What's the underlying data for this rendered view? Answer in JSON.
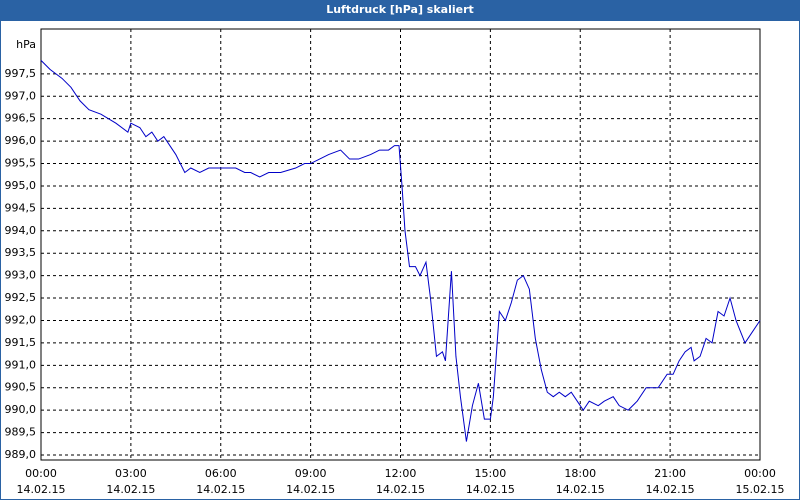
{
  "chart_data": {
    "type": "line",
    "title": "Luftdruck [hPa] skaliert",
    "y_label": "hPa",
    "x": [
      0,
      0.3,
      0.7,
      1.0,
      1.3,
      1.6,
      2.0,
      2.5,
      2.9,
      3.0,
      3.3,
      3.5,
      3.7,
      3.9,
      4.1,
      4.5,
      4.8,
      5.0,
      5.3,
      5.6,
      6.0,
      6.5,
      6.8,
      7.0,
      7.3,
      7.6,
      8.0,
      8.5,
      8.8,
      9.0,
      9.3,
      9.6,
      10.0,
      10.3,
      10.6,
      11.0,
      11.3,
      11.6,
      11.8,
      11.95,
      12.05,
      12.15,
      12.3,
      12.5,
      12.65,
      12.85,
      13.0,
      13.2,
      13.4,
      13.5,
      13.7,
      13.85,
      14.0,
      14.2,
      14.4,
      14.6,
      14.8,
      15.0,
      15.1,
      15.3,
      15.5,
      15.7,
      15.9,
      16.1,
      16.3,
      16.5,
      16.7,
      16.9,
      17.1,
      17.3,
      17.5,
      17.7,
      17.9,
      18.1,
      18.3,
      18.6,
      18.8,
      19.1,
      19.3,
      19.6,
      19.9,
      20.2,
      20.4,
      20.6,
      20.9,
      21.1,
      21.3,
      21.5,
      21.7,
      21.8,
      22.0,
      22.2,
      22.4,
      22.6,
      22.8,
      23.0,
      23.2,
      23.5,
      23.7,
      24.0
    ],
    "series": [
      {
        "name": "Luftdruck",
        "color": "#0000c8",
        "values": [
          997.8,
          997.6,
          997.4,
          997.2,
          996.9,
          996.7,
          996.6,
          996.4,
          996.2,
          996.4,
          996.3,
          996.1,
          996.2,
          996.0,
          996.1,
          995.7,
          995.3,
          995.4,
          995.3,
          995.4,
          995.4,
          995.4,
          995.3,
          995.3,
          995.2,
          995.3,
          995.3,
          995.4,
          995.5,
          995.5,
          995.6,
          995.7,
          995.8,
          995.6,
          995.6,
          995.7,
          995.8,
          995.8,
          995.9,
          995.9,
          995.0,
          994.0,
          993.2,
          993.2,
          993.0,
          993.3,
          992.5,
          991.2,
          991.3,
          991.1,
          993.1,
          991.2,
          990.3,
          989.3,
          990.1,
          990.6,
          989.8,
          989.8,
          990.3,
          992.2,
          992.0,
          992.4,
          992.9,
          993.0,
          992.7,
          991.6,
          990.9,
          990.4,
          990.3,
          990.4,
          990.3,
          990.4,
          990.2,
          990.0,
          990.2,
          990.1,
          990.2,
          990.3,
          990.1,
          990.0,
          990.2,
          990.5,
          990.5,
          990.5,
          990.8,
          990.8,
          991.1,
          991.3,
          991.4,
          991.1,
          991.2,
          991.6,
          991.5,
          992.2,
          992.1,
          992.5,
          992.0,
          991.5,
          991.7,
          992.0
        ]
      }
    ],
    "xlim": [
      0,
      24
    ],
    "xticks": [
      {
        "value": 0,
        "label": "00:00 14.02.15"
      },
      {
        "value": 3,
        "label": "03:00 14.02.15"
      },
      {
        "value": 6,
        "label": "06:00 14.02.15"
      },
      {
        "value": 9,
        "label": "09:00 14.02.15"
      },
      {
        "value": 12,
        "label": "12:00 14.02.15"
      },
      {
        "value": 15,
        "label": "15:00 14.02.15"
      },
      {
        "value": 18,
        "label": "18:00 14.02.15"
      },
      {
        "value": 21,
        "label": "21:00 14.02.15"
      },
      {
        "value": 24,
        "label": "00:00 15.02.15"
      }
    ],
    "ylim": [
      989,
      998.5
    ],
    "yticks": [
      {
        "value": 989.0,
        "label": "989,0"
      },
      {
        "value": 989.5,
        "label": "989,5"
      },
      {
        "value": 990.0,
        "label": "990,0"
      },
      {
        "value": 990.5,
        "label": "990,5"
      },
      {
        "value": 991.0,
        "label": "991,0"
      },
      {
        "value": 991.5,
        "label": "991,5"
      },
      {
        "value": 992.0,
        "label": "992,0"
      },
      {
        "value": 992.5,
        "label": "992,5"
      },
      {
        "value": 993.0,
        "label": "993,0"
      },
      {
        "value": 993.5,
        "label": "993,5"
      },
      {
        "value": 994.0,
        "label": "994,0"
      },
      {
        "value": 994.5,
        "label": "994,5"
      },
      {
        "value": 995.0,
        "label": "995,0"
      },
      {
        "value": 995.5,
        "label": "995,5"
      },
      {
        "value": 996.0,
        "label": "996,0"
      },
      {
        "value": 996.5,
        "label": "996,5"
      },
      {
        "value": 997.0,
        "label": "997,0"
      },
      {
        "value": 997.5,
        "label": "997,5"
      }
    ],
    "grid": true
  }
}
